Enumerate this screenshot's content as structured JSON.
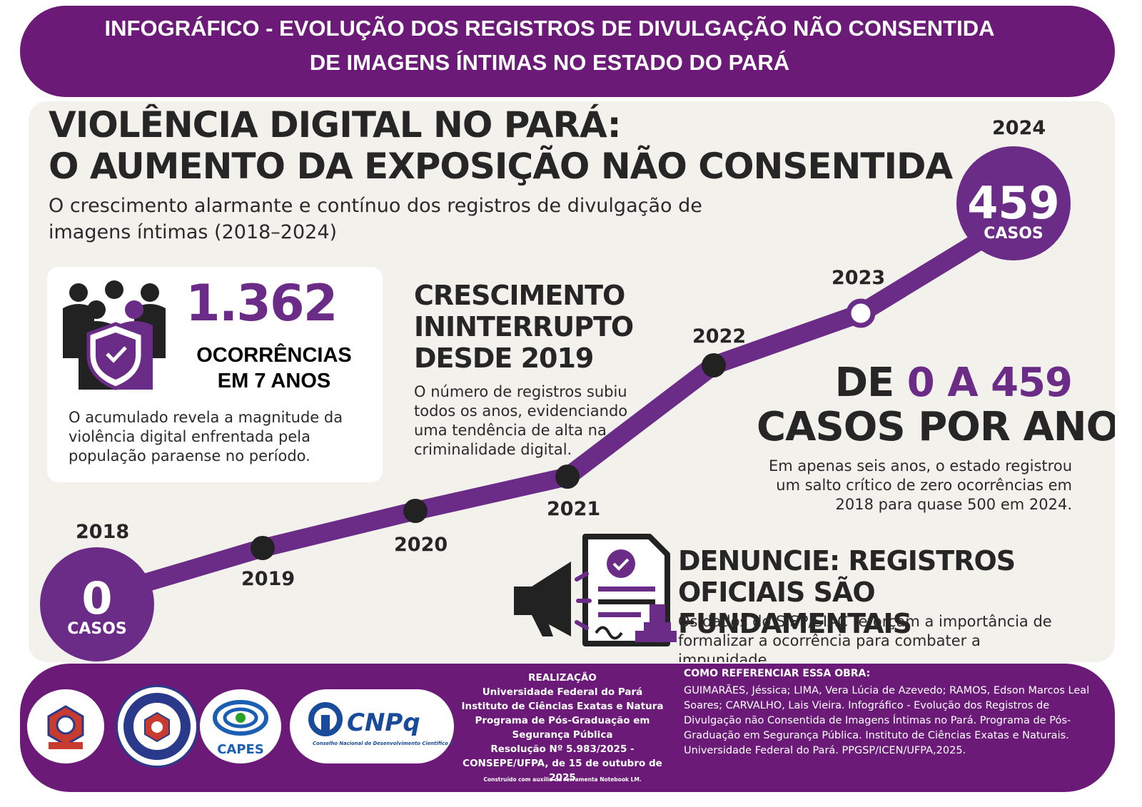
{
  "header": {
    "title_line1": "INFOGRÁFICO - EVOLUÇÃO DOS REGISTROS DE DIVULGAÇÃO NÃO CONSENTIDA",
    "title_line2": "DE IMAGENS ÍNTIMAS NO ESTADO DO PARÁ"
  },
  "main": {
    "title_line1": "VIOLÊNCIA DIGITAL NO PARÁ:",
    "title_line2": "O AUMENTO DA EXPOSIÇÃO NÃO CONSENTIDA",
    "subtitle": "O crescimento alarmante e contínuo dos registros de divulgação de imagens íntimas (2018–2024)"
  },
  "stat_card": {
    "value": "1.362",
    "label_line1": "OCORRÊNCIAS",
    "label_line2": "EM 7 ANOS",
    "text": "O acumulado revela a magnitude da violência digital enfrentada pela população paraense no período.",
    "icon": "people-shield-icon"
  },
  "growth": {
    "title_line1": "CRESCIMENTO",
    "title_line2": "ININTERRUPTO",
    "title_line3": "DESDE 2019",
    "text": "O número de registros subiu todos os anos, evidenciando uma tendência de alta na criminalidade digital."
  },
  "range": {
    "line1_prefix": "DE ",
    "line1_highlight": "0 A 459",
    "line2": "CASOS POR ANO",
    "text": "Em apenas seis anos, o estado registrou um salto crítico de zero ocorrências em 2018 para quase 500 em 2024."
  },
  "report": {
    "title_line1": "DENUNCIE: REGISTROS",
    "title_line2": "OFICIAIS SÃO FUNDAMENTAIS",
    "text": "Os dados do SISP/SIAC reforçam a importância de formalizar a ocorrência para combater a impunidade.",
    "icon": "megaphone-document-icon"
  },
  "timeline": {
    "years": [
      "2018",
      "2019",
      "2020",
      "2021",
      "2022",
      "2023",
      "2024"
    ],
    "start_value": "0",
    "start_label": "CASOS",
    "end_value": "459",
    "end_label": "CASOS",
    "line_color": "#6b2c87",
    "node_color": "#222222"
  },
  "footer": {
    "logos": [
      "UFPA",
      "PPGSP",
      "CAPES",
      "CNPq"
    ],
    "capes_label": "CAPES",
    "cnpq_label": "CNPq",
    "cnpq_subtitle": "Conselho Nacional de Desenvolvimento Científico e Tecnológico",
    "credits": [
      "REALIZAÇÃO",
      "Universidade Federal do Pará",
      "Instituto de Ciências Exatas e Natura",
      "Programa de Pós-Graduação em",
      "Segurança Pública",
      "Resolução Nº 5.983/2025 -",
      "CONSEPE/UFPA, de 15 de outubro de 2025"
    ],
    "credits_note": "Construído com auxílio da ferramenta Notebook LM.",
    "ref_title": "COMO REFERENCIAR ESSA OBRA:",
    "ref_text": "GUIMARÃES, Jéssica; LIMA, Vera Lúcia de Azevedo; RAMOS, Edson Marcos Leal Soares; CARVALHO, Lais Vieira. Infográfico - Evolução dos Registros de Divulgação não Consentida de Imagens Íntimas no Pará. Programa de Pós-Graduação em Segurança Pública. Instituto de Ciências Exatas e Naturais. Universidade Federal do Pará. PPGSP/ICEN/UFPA,2025."
  },
  "colors": {
    "brand_purple": "#6b1a78",
    "accent_purple": "#6b2c87",
    "panel_bg": "#f3f1ec"
  }
}
